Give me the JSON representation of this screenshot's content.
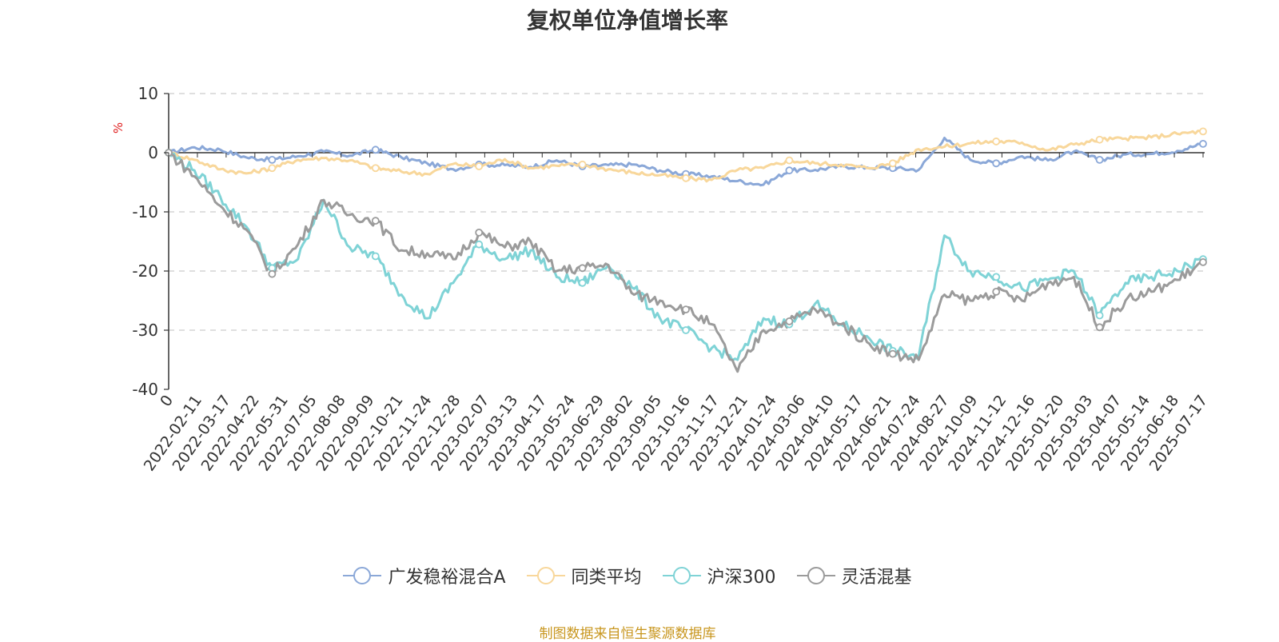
{
  "chart_data": {
    "type": "line",
    "title": "复权单位净值增长率",
    "ylabel": "%",
    "ylim": [
      -40,
      10
    ],
    "yticks": [
      "10",
      "0",
      "-10",
      "-20",
      "-30",
      "-40"
    ],
    "x_tick_labels": [
      "0",
      "2022-02-11",
      "2022-03-17",
      "2022-04-22",
      "2022-05-31",
      "2022-07-05",
      "2022-08-08",
      "2022-09-09",
      "2022-10-21",
      "2022-11-24",
      "2022-12-28",
      "2023-02-07",
      "2023-03-13",
      "2023-04-17",
      "2023-05-24",
      "2023-06-29",
      "2023-08-02",
      "2023-09-05",
      "2023-10-16",
      "2023-11-17",
      "2023-12-21",
      "2024-01-24",
      "2024-03-06",
      "2024-04-10",
      "2024-05-17",
      "2024-06-21",
      "2024-07-24",
      "2024-08-27",
      "2024-10-09",
      "2024-11-12",
      "2024-12-16",
      "2025-01-20",
      "2025-03-03",
      "2025-04-07",
      "2025-05-14",
      "2025-06-18",
      "2025-07-17"
    ],
    "grid": "dashed horizontal",
    "legend_position": "bottom",
    "series": [
      {
        "name": "广发稳裕混合A",
        "color": "#8ba8d8",
        "values": [
          0,
          0.9,
          0.5,
          -0.8,
          -1.2,
          -0.6,
          0.2,
          -0.5,
          0.5,
          -0.8,
          -1.8,
          -2.8,
          -2.0,
          -2.1,
          -2.4,
          -1.3,
          -2.3,
          -2.1,
          -2.0,
          -3.0,
          -3.6,
          -4.0,
          -4.8,
          -5.4,
          -3.0,
          -2.9,
          -2.3,
          -2.5,
          -2.6,
          -2.9,
          2.5,
          -1.2,
          -1.8,
          -0.6,
          -1.3,
          0.2,
          -1.2,
          -0.3,
          -0.2,
          0.3,
          1.5
        ]
      },
      {
        "name": "同类平均",
        "color": "#f8d79b",
        "values": [
          0,
          -1.2,
          -2.8,
          -3.5,
          -2.6,
          -1.2,
          -0.9,
          -1.3,
          -2.6,
          -3.2,
          -3.6,
          -1.9,
          -2.3,
          -1.1,
          -2.6,
          -2.2,
          -2.0,
          -2.8,
          -3.4,
          -3.8,
          -4.3,
          -4.6,
          -2.9,
          -2.6,
          -1.3,
          -1.8,
          -2.0,
          -2.6,
          -1.8,
          0.6,
          1.0,
          1.6,
          1.9,
          1.7,
          0.4,
          1.4,
          2.2,
          2.4,
          2.6,
          3.2,
          3.6
        ]
      },
      {
        "name": "沪深300",
        "color": "#7fd3d6",
        "values": [
          0,
          -3.0,
          -7.5,
          -12.5,
          -19.5,
          -18.0,
          -8.0,
          -16.0,
          -17.5,
          -24.0,
          -28.0,
          -22.0,
          -15.5,
          -18.0,
          -16.5,
          -21.0,
          -22.0,
          -19.0,
          -23.0,
          -28.0,
          -30.0,
          -33.0,
          -35.0,
          -28.0,
          -29.0,
          -25.5,
          -29.0,
          -31.0,
          -33.5,
          -34.5,
          -14.0,
          -20.0,
          -21.0,
          -23.0,
          -21.5,
          -20.0,
          -27.5,
          -22.0,
          -21.0,
          -20.0,
          -18.0
        ]
      },
      {
        "name": "灵活混基",
        "color": "#9b9b9b",
        "values": [
          0,
          -4.0,
          -9.0,
          -13.0,
          -20.5,
          -15.5,
          -8.0,
          -10.5,
          -11.5,
          -16.5,
          -17.0,
          -18.0,
          -13.5,
          -16.0,
          -15.0,
          -20.0,
          -19.5,
          -19.0,
          -24.0,
          -25.0,
          -26.5,
          -29.0,
          -37.0,
          -30.0,
          -28.5,
          -26.5,
          -29.0,
          -32.0,
          -34.0,
          -35.0,
          -24.0,
          -25.0,
          -23.5,
          -25.0,
          -22.0,
          -21.0,
          -29.5,
          -25.0,
          -23.5,
          -21.5,
          -18.5
        ]
      }
    ]
  },
  "source_note": "制图数据来自恒生聚源数据库"
}
